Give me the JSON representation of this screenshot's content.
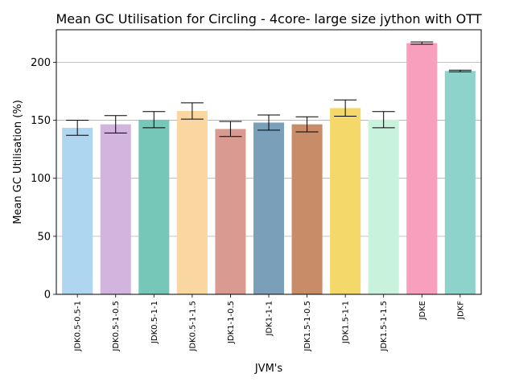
{
  "chart_data": {
    "type": "bar",
    "title": "Mean GC Utilisation for Circling - 4core- large size jython with OTT",
    "xlabel": "JVM's",
    "ylabel": "Mean GC Utilisation (%)",
    "ylim": [
      0,
      228
    ],
    "yticks": [
      0,
      50,
      100,
      150,
      200
    ],
    "grid": "y",
    "categories": [
      "JDK0.5-0.5-1",
      "JDK0.5-1-0.5",
      "JDK0.5-1-1",
      "JDK0.5-1-1.5",
      "JDK1-1-0.5",
      "JDK1-1-1",
      "JDK1.5-1-0.5",
      "JDK1.5-1-1",
      "JDK1.5-1-1.5",
      "JDKE",
      "JDKF"
    ],
    "values": [
      143.5,
      146.5,
      150.5,
      158,
      142.5,
      148,
      146.5,
      160.5,
      150.5,
      216.5,
      192.5
    ],
    "errors": [
      6.5,
      7.5,
      7,
      7,
      6.5,
      6.5,
      6.5,
      7,
      7,
      1,
      0.7
    ],
    "colors": [
      "#aed6f1",
      "#d2b4de",
      "#76c7b7",
      "#fad7a0",
      "#d99a91",
      "#7a9fb8",
      "#c88c69",
      "#f4d86a",
      "#c9f2dc",
      "#f79fbc",
      "#8ed3cb"
    ]
  }
}
